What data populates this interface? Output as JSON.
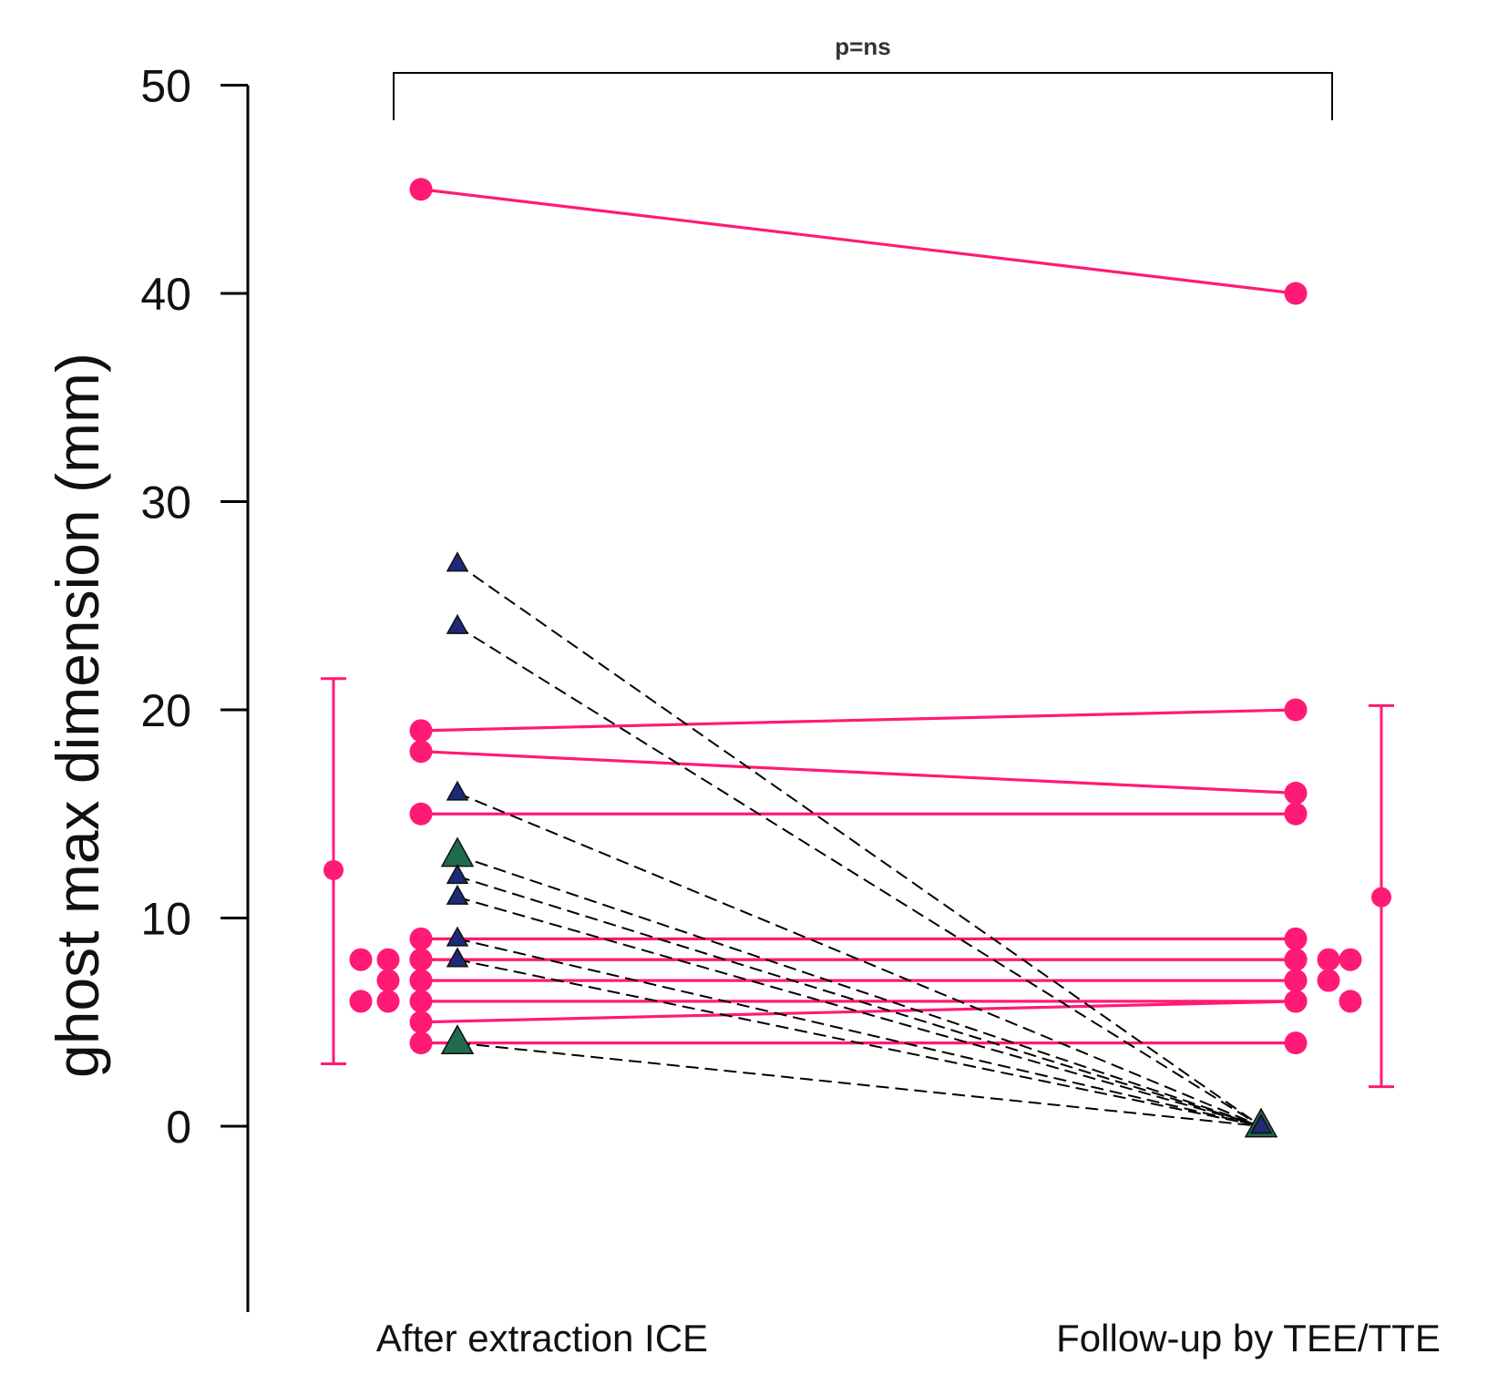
{
  "chart_data": {
    "type": "scatter",
    "ylabel": "ghost max dimension (mm)",
    "ylim": [
      -9,
      50
    ],
    "yticks": [
      0,
      10,
      20,
      30,
      40,
      50
    ],
    "categories": [
      "After extraction ICE",
      "Follow-up by TEE/TTE"
    ],
    "significance": {
      "label": "p=ns",
      "between": [
        "After extraction ICE",
        "Follow-up by TEE/TTE"
      ]
    },
    "colors": {
      "persisted": "#ff1a75",
      "resolved_line": "#000000",
      "triangle_navy": "#1e2a78",
      "triangle_green": "#1f6b4e",
      "axis": "#000000"
    },
    "series": [
      {
        "marker": "circle",
        "line": "solid",
        "color": "#ff1a75",
        "pairs": [
          [
            45,
            40
          ],
          [
            19,
            20
          ],
          [
            18,
            16
          ],
          [
            15,
            15
          ],
          [
            9,
            9
          ],
          [
            8,
            8
          ],
          [
            8,
            8
          ],
          [
            7,
            7
          ],
          [
            7,
            7
          ],
          [
            6,
            6
          ],
          [
            5,
            6
          ],
          [
            4,
            4
          ]
        ]
      },
      {
        "marker": "triangle",
        "line": "dashed",
        "color": "#000000",
        "pairs": [
          [
            27,
            0
          ],
          [
            24,
            0
          ],
          [
            16,
            0
          ],
          [
            13,
            0
          ],
          [
            12,
            0
          ],
          [
            11,
            0
          ],
          [
            9,
            0
          ],
          [
            8,
            0
          ],
          [
            4,
            0
          ]
        ],
        "marker_colors": [
          "#1e2a78",
          "#1e2a78",
          "#1e2a78",
          "#1f6b4e",
          "#1e2a78",
          "#1e2a78",
          "#1e2a78",
          "#1e2a78",
          "#1f6b4e"
        ]
      }
    ],
    "extra_points": {
      "before": [
        8,
        8,
        7,
        6,
        6
      ],
      "after": [
        8,
        8,
        7,
        6
      ]
    },
    "summary": [
      {
        "group": "After extraction ICE",
        "mean": 12.3,
        "low": 3.0,
        "high": 21.5
      },
      {
        "group": "Follow-up by TEE/TTE",
        "mean": 11.0,
        "low": 1.9,
        "high": 20.2
      }
    ]
  }
}
